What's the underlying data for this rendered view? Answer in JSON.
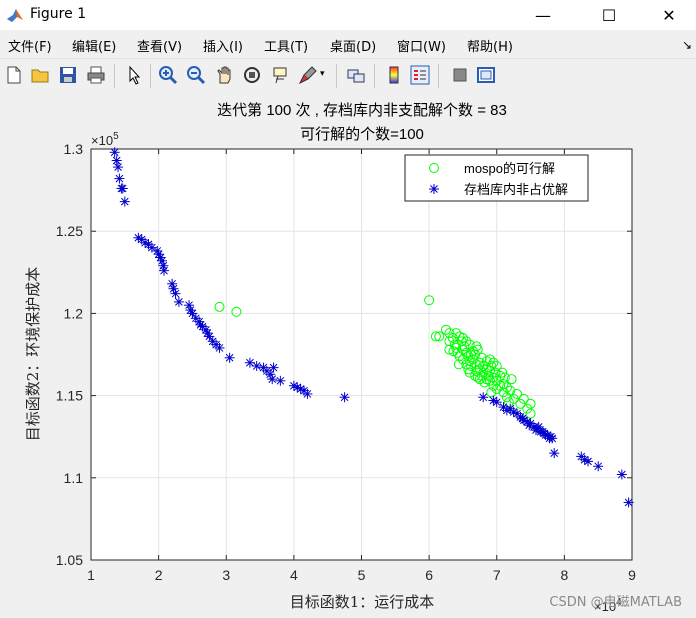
{
  "window": {
    "title": "Figure 1",
    "minimize_glyph": "—",
    "maximize_glyph": "☐",
    "close_glyph": "✕"
  },
  "menu": {
    "items": [
      "文件(F)",
      "编辑(E)",
      "查看(V)",
      "插入(I)",
      "工具(T)",
      "桌面(D)",
      "窗口(W)",
      "帮助(H)"
    ],
    "corner_glyph": "↘"
  },
  "toolbar": {
    "icons": [
      "new-file-icon",
      "open-folder-icon",
      "save-icon",
      "print-icon",
      "pointer-icon",
      "zoom-in-icon",
      "zoom-out-icon",
      "pan-icon",
      "rotate-3d-icon",
      "data-cursor-icon",
      "brush-icon",
      "link-icon",
      "colorbar-icon",
      "legend-icon",
      "hide-plot-tools-icon",
      "show-plot-tools-icon"
    ]
  },
  "watermark": "CSDN @电磁MATLAB",
  "chart_data": {
    "type": "scatter",
    "title": [
      "迭代第 100 次 , 存档库内非支配解个数 = 83",
      "可行解的个数=100"
    ],
    "xlabel": "目标函数1：运行成本",
    "ylabel": "目标函数2：环境保护成本",
    "x_exponent_label": "×10",
    "x_exponent_power": "4",
    "y_exponent_label": "×10",
    "y_exponent_power": "5",
    "xlim": [
      1,
      9
    ],
    "ylim": [
      1.05,
      1.3
    ],
    "xticks": [
      1,
      2,
      3,
      4,
      5,
      6,
      7,
      8,
      9
    ],
    "yticks": [
      1.05,
      1.1,
      1.15,
      1.2,
      1.25,
      1.3
    ],
    "grid": true,
    "legend_position": "top-right",
    "series": [
      {
        "name": "mospo的可行解",
        "marker": "circle",
        "color": "#00ff00",
        "points": [
          [
            2.9,
            1.204
          ],
          [
            3.15,
            1.201
          ],
          [
            6.0,
            1.208
          ],
          [
            6.1,
            1.186
          ],
          [
            6.15,
            1.186
          ],
          [
            6.25,
            1.19
          ],
          [
            6.3,
            1.188
          ],
          [
            6.3,
            1.183
          ],
          [
            6.35,
            1.185
          ],
          [
            6.38,
            1.181
          ],
          [
            6.4,
            1.179
          ],
          [
            6.42,
            1.176
          ],
          [
            6.45,
            1.186
          ],
          [
            6.45,
            1.174
          ],
          [
            6.48,
            1.183
          ],
          [
            6.5,
            1.178
          ],
          [
            6.5,
            1.172
          ],
          [
            6.52,
            1.18
          ],
          [
            6.55,
            1.176
          ],
          [
            6.55,
            1.169
          ],
          [
            6.58,
            1.174
          ],
          [
            6.6,
            1.181
          ],
          [
            6.6,
            1.171
          ],
          [
            6.6,
            1.164
          ],
          [
            6.62,
            1.168
          ],
          [
            6.65,
            1.177
          ],
          [
            6.65,
            1.172
          ],
          [
            6.68,
            1.175
          ],
          [
            6.7,
            1.169
          ],
          [
            6.7,
            1.165
          ],
          [
            6.72,
            1.178
          ],
          [
            6.72,
            1.161
          ],
          [
            6.75,
            1.17
          ],
          [
            6.75,
            1.166
          ],
          [
            6.78,
            1.173
          ],
          [
            6.78,
            1.162
          ],
          [
            6.8,
            1.168
          ],
          [
            6.8,
            1.164
          ],
          [
            6.82,
            1.158
          ],
          [
            6.85,
            1.166
          ],
          [
            6.85,
            1.171
          ],
          [
            6.88,
            1.162
          ],
          [
            6.9,
            1.165
          ],
          [
            6.9,
            1.159
          ],
          [
            6.92,
            1.168
          ],
          [
            6.95,
            1.161
          ],
          [
            6.95,
            1.156
          ],
          [
            6.98,
            1.164
          ],
          [
            7.0,
            1.159
          ],
          [
            7.0,
            1.154
          ],
          [
            7.05,
            1.162
          ],
          [
            7.05,
            1.156
          ],
          [
            7.1,
            1.157
          ],
          [
            7.1,
            1.152
          ],
          [
            7.15,
            1.155
          ],
          [
            7.15,
            1.149
          ],
          [
            7.2,
            1.153
          ],
          [
            7.22,
            1.16
          ],
          [
            7.25,
            1.148
          ],
          [
            7.3,
            1.151
          ],
          [
            7.35,
            1.145
          ],
          [
            7.4,
            1.148
          ],
          [
            7.45,
            1.142
          ],
          [
            7.5,
            1.139
          ],
          [
            7.5,
            1.145
          ],
          [
            6.7,
            1.18
          ],
          [
            6.9,
            1.172
          ],
          [
            6.55,
            1.183
          ],
          [
            7.0,
            1.168
          ],
          [
            6.4,
            1.188
          ],
          [
            6.62,
            1.175
          ],
          [
            6.85,
            1.16
          ],
          [
            6.95,
            1.17
          ],
          [
            7.08,
            1.164
          ],
          [
            6.5,
            1.185
          ],
          [
            6.75,
            1.16
          ],
          [
            6.3,
            1.178
          ],
          [
            6.68,
            1.162
          ],
          [
            7.12,
            1.161
          ],
          [
            6.58,
            1.166
          ],
          [
            6.44,
            1.169
          ],
          [
            6.92,
            1.152
          ],
          [
            7.18,
            1.146
          ],
          [
            6.36,
            1.177
          ]
        ]
      },
      {
        "name": "存档库内非占优解",
        "marker": "asterisk",
        "color": "#0000cd",
        "points": [
          [
            1.35,
            1.298
          ],
          [
            1.38,
            1.293
          ],
          [
            1.4,
            1.289
          ],
          [
            1.42,
            1.282
          ],
          [
            1.45,
            1.276
          ],
          [
            1.47,
            1.276
          ],
          [
            1.5,
            1.268
          ],
          [
            1.7,
            1.246
          ],
          [
            1.75,
            1.245
          ],
          [
            1.8,
            1.243
          ],
          [
            1.85,
            1.242
          ],
          [
            1.9,
            1.24
          ],
          [
            1.98,
            1.238
          ],
          [
            2.0,
            1.236
          ],
          [
            2.03,
            1.234
          ],
          [
            2.05,
            1.232
          ],
          [
            2.07,
            1.229
          ],
          [
            2.08,
            1.226
          ],
          [
            2.2,
            1.218
          ],
          [
            2.22,
            1.215
          ],
          [
            2.25,
            1.212
          ],
          [
            2.3,
            1.207
          ],
          [
            2.45,
            1.205
          ],
          [
            2.47,
            1.202
          ],
          [
            2.5,
            1.2
          ],
          [
            2.55,
            1.197
          ],
          [
            2.6,
            1.195
          ],
          [
            2.62,
            1.193
          ],
          [
            2.65,
            1.192
          ],
          [
            2.7,
            1.19
          ],
          [
            2.72,
            1.188
          ],
          [
            2.75,
            1.186
          ],
          [
            2.8,
            1.183
          ],
          [
            2.85,
            1.181
          ],
          [
            2.9,
            1.179
          ],
          [
            3.05,
            1.173
          ],
          [
            3.35,
            1.17
          ],
          [
            3.45,
            1.168
          ],
          [
            3.55,
            1.167
          ],
          [
            3.6,
            1.165
          ],
          [
            3.65,
            1.163
          ],
          [
            3.68,
            1.16
          ],
          [
            3.7,
            1.167
          ],
          [
            3.8,
            1.159
          ],
          [
            4.0,
            1.156
          ],
          [
            4.05,
            1.155
          ],
          [
            4.1,
            1.154
          ],
          [
            4.15,
            1.153
          ],
          [
            4.2,
            1.151
          ],
          [
            4.75,
            1.149
          ],
          [
            7.0,
            1.146
          ],
          [
            7.2,
            1.142
          ],
          [
            7.25,
            1.14
          ],
          [
            7.3,
            1.139
          ],
          [
            7.35,
            1.137
          ],
          [
            7.4,
            1.135
          ],
          [
            7.45,
            1.134
          ],
          [
            7.5,
            1.133
          ],
          [
            7.55,
            1.131
          ],
          [
            7.6,
            1.13
          ],
          [
            7.65,
            1.128
          ],
          [
            7.7,
            1.127
          ],
          [
            7.75,
            1.126
          ],
          [
            7.8,
            1.125
          ],
          [
            7.82,
            1.124
          ],
          [
            7.85,
            1.115
          ],
          [
            8.25,
            1.113
          ],
          [
            8.3,
            1.111
          ],
          [
            8.35,
            1.11
          ],
          [
            8.5,
            1.107
          ],
          [
            8.85,
            1.102
          ],
          [
            8.95,
            1.085
          ],
          [
            6.8,
            1.149
          ],
          [
            6.95,
            1.147
          ],
          [
            7.1,
            1.143
          ],
          [
            7.15,
            1.141
          ],
          [
            7.38,
            1.136
          ],
          [
            7.48,
            1.132
          ],
          [
            7.58,
            1.129
          ],
          [
            7.68,
            1.128
          ],
          [
            7.72,
            1.126
          ],
          [
            7.78,
            1.124
          ],
          [
            7.62,
            1.131
          ]
        ]
      }
    ]
  }
}
